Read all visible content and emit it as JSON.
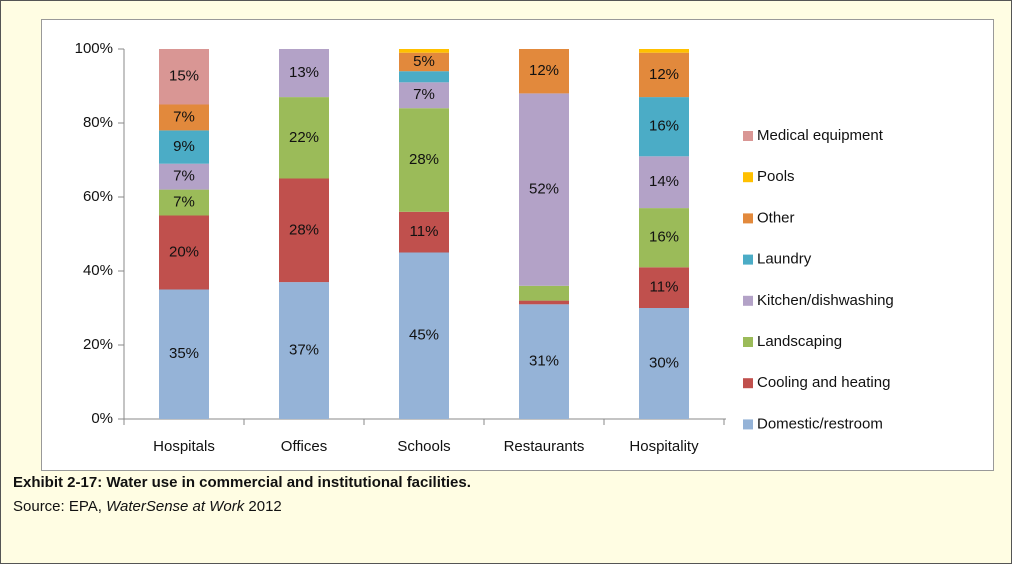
{
  "chart_data": {
    "type": "stacked_bar",
    "categories": [
      "Hospitals",
      "Offices",
      "Schools",
      "Restaurants",
      "Hospitality"
    ],
    "series": [
      {
        "name": "Domestic/restroom",
        "color": "#95b3d7",
        "values": [
          35,
          37,
          45,
          31,
          30
        ],
        "value_labels": [
          "35%",
          "37%",
          "45%",
          "31%",
          "30%"
        ]
      },
      {
        "name": "Cooling and heating",
        "color": "#c0504d",
        "values": [
          20,
          28,
          11,
          1,
          11
        ],
        "value_labels": [
          "20%",
          "28%",
          "11%",
          null,
          "11%"
        ]
      },
      {
        "name": "Landscaping",
        "color": "#9bbb59",
        "values": [
          7,
          22,
          28,
          4,
          16
        ],
        "value_labels": [
          "7%",
          "22%",
          "28%",
          null,
          "16%"
        ]
      },
      {
        "name": "Kitchen/dishwashing",
        "color": "#b3a2c7",
        "values": [
          7,
          13,
          7,
          52,
          14
        ],
        "value_labels": [
          "7%",
          "13%",
          "7%",
          "52%",
          "14%"
        ]
      },
      {
        "name": "Laundry",
        "color": "#4bacc6",
        "values": [
          9,
          0,
          3,
          0,
          16
        ],
        "value_labels": [
          "9%",
          null,
          null,
          null,
          "16%"
        ]
      },
      {
        "name": "Other",
        "color": "#e2893c",
        "values": [
          7,
          0,
          5,
          12,
          12
        ],
        "value_labels": [
          "7%",
          null,
          "5%",
          "12%",
          "12%"
        ]
      },
      {
        "name": "Pools",
        "color": "#ffc000",
        "values": [
          0,
          0,
          1,
          0,
          1
        ],
        "value_labels": [
          null,
          null,
          null,
          null,
          null
        ]
      },
      {
        "name": "Medical equipment",
        "color": "#d99694",
        "values": [
          15,
          0,
          0,
          0,
          0
        ],
        "value_labels": [
          "15%",
          null,
          null,
          null,
          null
        ]
      }
    ],
    "ylim": [
      0,
      100
    ],
    "yticks": [
      {
        "value": 0,
        "label": "0%"
      },
      {
        "value": 20,
        "label": "20%"
      },
      {
        "value": 40,
        "label": "40%"
      },
      {
        "value": 60,
        "label": "60%"
      },
      {
        "value": 80,
        "label": "80%"
      },
      {
        "value": 100,
        "label": "100%"
      }
    ],
    "legend": "right"
  },
  "caption": {
    "title": "Exhibit 2-17: Water use in commercial and institutional facilities.",
    "source_prefix": "Source: EPA,",
    "source_italic": "WaterSense at Work",
    "source_suffix": "2012"
  }
}
